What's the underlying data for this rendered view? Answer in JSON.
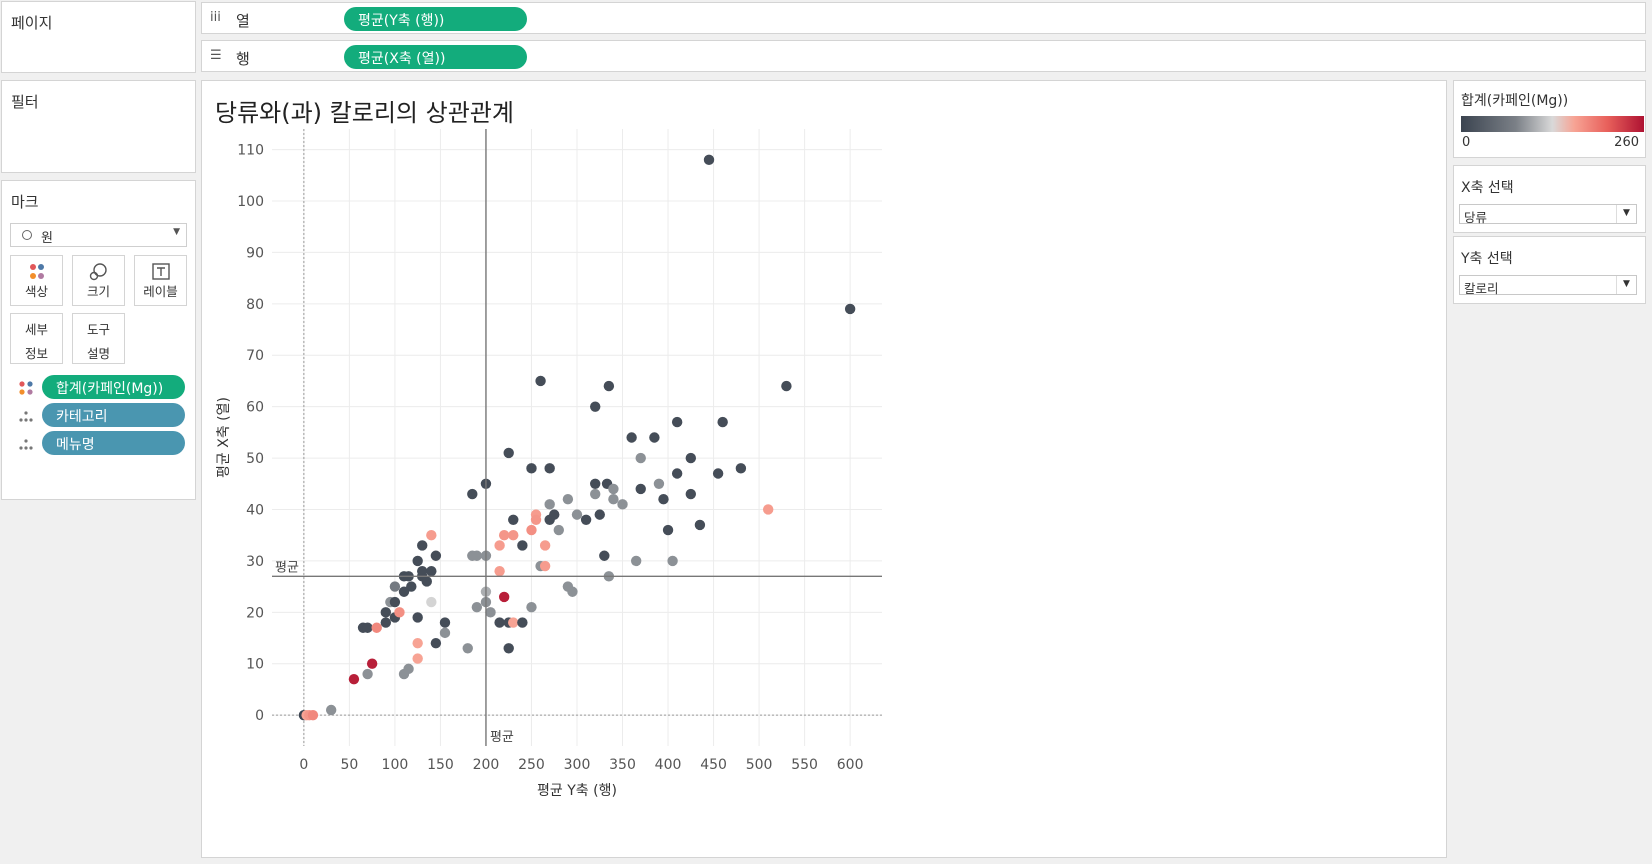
{
  "pages": {
    "title": "페이지"
  },
  "filters": {
    "title": "필터"
  },
  "columns_shelf": {
    "icon": "iii",
    "label": "열",
    "pill": "평균(Y축 (행))"
  },
  "rows_shelf": {
    "icon": "☰",
    "label": "행",
    "pill": "평균(X축 (열))"
  },
  "marks": {
    "title": "마크",
    "mark_type": "원",
    "buttons": {
      "color": "색상",
      "size": "크기",
      "label": "레이블",
      "detail": [
        "세부",
        "정보"
      ],
      "tooltip": [
        "도구",
        "설명"
      ]
    },
    "fields": [
      "합계(카페인(Mg))",
      "카테고리",
      "메뉴명"
    ]
  },
  "legend": {
    "title": "합계(카페인(Mg))",
    "min": "0",
    "max": "260",
    "colors": [
      "#3b4450",
      "#d9d9d9",
      "#ae1232"
    ]
  },
  "x_param": {
    "title": "X축 선택",
    "value": "당류"
  },
  "y_param": {
    "title": "Y축 선택",
    "value": "칼로리"
  },
  "viz": {
    "title": "당류와(과) 칼로리의 상관관계"
  },
  "chart_data": {
    "type": "scatter",
    "xlabel": "평균 Y축 (행)",
    "ylabel": "평균 X축 (열)",
    "xlim": [
      -35,
      635
    ],
    "ylim": [
      -6,
      114
    ],
    "xticks": [
      0,
      50,
      100,
      150,
      200,
      250,
      300,
      350,
      400,
      450,
      500,
      550,
      600
    ],
    "yticks": [
      0,
      10,
      20,
      30,
      40,
      50,
      60,
      70,
      80,
      90,
      100,
      110
    ],
    "reference_lines": {
      "x": 200,
      "y": 27,
      "label": "평균"
    },
    "grid": true,
    "points": [
      {
        "x": 0,
        "y": 0,
        "c": 0
      },
      {
        "x": 3,
        "y": 0,
        "c": 150
      },
      {
        "x": 6,
        "y": 0,
        "c": 160
      },
      {
        "x": 10,
        "y": 0,
        "c": 170
      },
      {
        "x": 30,
        "y": 1,
        "c": 85
      },
      {
        "x": 55,
        "y": 7,
        "c": 250
      },
      {
        "x": 70,
        "y": 8,
        "c": 85
      },
      {
        "x": 75,
        "y": 10,
        "c": 250
      },
      {
        "x": 65,
        "y": 17,
        "c": 10
      },
      {
        "x": 70,
        "y": 17,
        "c": 10
      },
      {
        "x": 80,
        "y": 17,
        "c": 170
      },
      {
        "x": 90,
        "y": 18,
        "c": 10
      },
      {
        "x": 90,
        "y": 20,
        "c": 10
      },
      {
        "x": 95,
        "y": 22,
        "c": 85
      },
      {
        "x": 100,
        "y": 19,
        "c": 10
      },
      {
        "x": 105,
        "y": 20,
        "c": 165
      },
      {
        "x": 100,
        "y": 22,
        "c": 10
      },
      {
        "x": 100,
        "y": 25,
        "c": 60
      },
      {
        "x": 110,
        "y": 24,
        "c": 10
      },
      {
        "x": 110,
        "y": 27,
        "c": 10
      },
      {
        "x": 115,
        "y": 27,
        "c": 10
      },
      {
        "x": 118,
        "y": 25,
        "c": 10
      },
      {
        "x": 110,
        "y": 8,
        "c": 85
      },
      {
        "x": 115,
        "y": 9,
        "c": 85
      },
      {
        "x": 125,
        "y": 11,
        "c": 150
      },
      {
        "x": 125,
        "y": 14,
        "c": 150
      },
      {
        "x": 125,
        "y": 19,
        "c": 10
      },
      {
        "x": 125,
        "y": 30,
        "c": 10
      },
      {
        "x": 130,
        "y": 33,
        "c": 10
      },
      {
        "x": 130,
        "y": 27,
        "c": 10
      },
      {
        "x": 130,
        "y": 28,
        "c": 10
      },
      {
        "x": 135,
        "y": 26,
        "c": 10
      },
      {
        "x": 140,
        "y": 28,
        "c": 10
      },
      {
        "x": 140,
        "y": 35,
        "c": 155
      },
      {
        "x": 145,
        "y": 31,
        "c": 10
      },
      {
        "x": 140,
        "y": 22,
        "c": 120
      },
      {
        "x": 145,
        "y": 14,
        "c": 10
      },
      {
        "x": 155,
        "y": 18,
        "c": 10
      },
      {
        "x": 155,
        "y": 16,
        "c": 85
      },
      {
        "x": 180,
        "y": 13,
        "c": 85
      },
      {
        "x": 185,
        "y": 43,
        "c": 10
      },
      {
        "x": 185,
        "y": 31,
        "c": 85
      },
      {
        "x": 190,
        "y": 31,
        "c": 85
      },
      {
        "x": 190,
        "y": 21,
        "c": 85
      },
      {
        "x": 200,
        "y": 45,
        "c": 10
      },
      {
        "x": 200,
        "y": 31,
        "c": 85
      },
      {
        "x": 200,
        "y": 24,
        "c": 100
      },
      {
        "x": 200,
        "y": 22,
        "c": 85
      },
      {
        "x": 205,
        "y": 20,
        "c": 85
      },
      {
        "x": 215,
        "y": 33,
        "c": 155
      },
      {
        "x": 215,
        "y": 28,
        "c": 155
      },
      {
        "x": 215,
        "y": 18,
        "c": 10
      },
      {
        "x": 220,
        "y": 35,
        "c": 160
      },
      {
        "x": 220,
        "y": 23,
        "c": 250
      },
      {
        "x": 225,
        "y": 51,
        "c": 10
      },
      {
        "x": 225,
        "y": 18,
        "c": 10
      },
      {
        "x": 225,
        "y": 13,
        "c": 10
      },
      {
        "x": 230,
        "y": 38,
        "c": 10
      },
      {
        "x": 230,
        "y": 35,
        "c": 160
      },
      {
        "x": 230,
        "y": 18,
        "c": 150
      },
      {
        "x": 240,
        "y": 33,
        "c": 10
      },
      {
        "x": 240,
        "y": 18,
        "c": 10
      },
      {
        "x": 250,
        "y": 48,
        "c": 10
      },
      {
        "x": 250,
        "y": 36,
        "c": 165
      },
      {
        "x": 250,
        "y": 21,
        "c": 85
      },
      {
        "x": 255,
        "y": 39,
        "c": 155
      },
      {
        "x": 255,
        "y": 38,
        "c": 160
      },
      {
        "x": 260,
        "y": 65,
        "c": 10
      },
      {
        "x": 260,
        "y": 29,
        "c": 85
      },
      {
        "x": 265,
        "y": 33,
        "c": 155
      },
      {
        "x": 265,
        "y": 29,
        "c": 155
      },
      {
        "x": 270,
        "y": 48,
        "c": 10
      },
      {
        "x": 270,
        "y": 41,
        "c": 85
      },
      {
        "x": 270,
        "y": 38,
        "c": 10
      },
      {
        "x": 275,
        "y": 39,
        "c": 10
      },
      {
        "x": 280,
        "y": 36,
        "c": 85
      },
      {
        "x": 290,
        "y": 42,
        "c": 85
      },
      {
        "x": 290,
        "y": 25,
        "c": 85
      },
      {
        "x": 295,
        "y": 24,
        "c": 85
      },
      {
        "x": 300,
        "y": 39,
        "c": 85
      },
      {
        "x": 310,
        "y": 38,
        "c": 10
      },
      {
        "x": 320,
        "y": 60,
        "c": 10
      },
      {
        "x": 320,
        "y": 45,
        "c": 10
      },
      {
        "x": 320,
        "y": 43,
        "c": 85
      },
      {
        "x": 325,
        "y": 39,
        "c": 10
      },
      {
        "x": 330,
        "y": 31,
        "c": 10
      },
      {
        "x": 333,
        "y": 45,
        "c": 10
      },
      {
        "x": 335,
        "y": 64,
        "c": 10
      },
      {
        "x": 335,
        "y": 27,
        "c": 85
      },
      {
        "x": 340,
        "y": 44,
        "c": 85
      },
      {
        "x": 340,
        "y": 42,
        "c": 85
      },
      {
        "x": 350,
        "y": 41,
        "c": 85
      },
      {
        "x": 360,
        "y": 54,
        "c": 10
      },
      {
        "x": 365,
        "y": 30,
        "c": 85
      },
      {
        "x": 370,
        "y": 50,
        "c": 85
      },
      {
        "x": 370,
        "y": 44,
        "c": 10
      },
      {
        "x": 385,
        "y": 54,
        "c": 10
      },
      {
        "x": 390,
        "y": 45,
        "c": 85
      },
      {
        "x": 395,
        "y": 42,
        "c": 10
      },
      {
        "x": 400,
        "y": 36,
        "c": 10
      },
      {
        "x": 405,
        "y": 30,
        "c": 85
      },
      {
        "x": 410,
        "y": 57,
        "c": 10
      },
      {
        "x": 410,
        "y": 47,
        "c": 10
      },
      {
        "x": 425,
        "y": 50,
        "c": 10
      },
      {
        "x": 425,
        "y": 43,
        "c": 10
      },
      {
        "x": 435,
        "y": 37,
        "c": 10
      },
      {
        "x": 445,
        "y": 108,
        "c": 10
      },
      {
        "x": 455,
        "y": 47,
        "c": 10
      },
      {
        "x": 460,
        "y": 57,
        "c": 10
      },
      {
        "x": 480,
        "y": 48,
        "c": 10
      },
      {
        "x": 510,
        "y": 40,
        "c": 155
      },
      {
        "x": 530,
        "y": 64,
        "c": 10
      },
      {
        "x": 600,
        "y": 79,
        "c": 10
      }
    ]
  }
}
